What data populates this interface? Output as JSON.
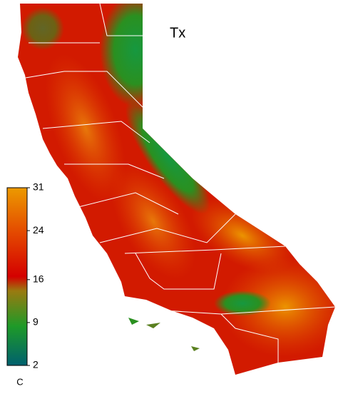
{
  "title": "Tx",
  "colorbar": {
    "ticks": [
      31,
      24,
      16,
      9,
      2
    ],
    "unit": "C"
  }
}
